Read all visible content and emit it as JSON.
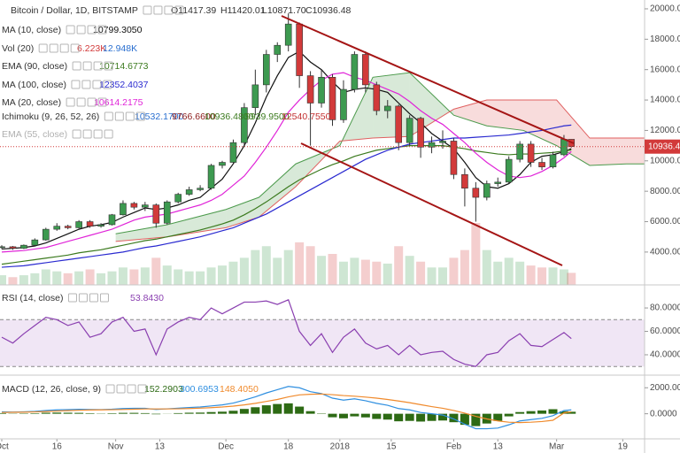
{
  "chart_data": [
    {
      "type": "candlestick",
      "title": "Bitcoin / Dollar, 1D, BITSTAMP",
      "legend_ohlc": [
        "O11417.39",
        "H11420.01",
        "L10871.70",
        "C10936.48"
      ],
      "x": [
        "10-01",
        "10-04",
        "10-07",
        "10-10",
        "10-13",
        "10-16",
        "10-19",
        "10-22",
        "10-25",
        "10-28",
        "10-31",
        "11-03",
        "11-06",
        "11-09",
        "11-12",
        "11-15",
        "11-18",
        "11-21",
        "11-24",
        "11-27",
        "11-30",
        "12-03",
        "12-06",
        "12-09",
        "12-12",
        "12-15",
        "12-18",
        "12-21",
        "12-24",
        "12-27",
        "12-30",
        "01-02",
        "01-05",
        "01-08",
        "01-11",
        "01-14",
        "01-17",
        "01-20",
        "01-23",
        "01-26",
        "01-29",
        "02-01",
        "02-04",
        "02-07",
        "02-10",
        "02-13",
        "02-16",
        "02-19",
        "02-22",
        "02-25",
        "02-28",
        "03-03",
        "03-05"
      ],
      "open": [
        4300,
        4350,
        4250,
        4450,
        4800,
        5500,
        5700,
        5600,
        6000,
        5700,
        5800,
        6450,
        7200,
        6950,
        7100,
        5900,
        7300,
        7800,
        8100,
        8200,
        9700,
        9900,
        11200,
        13500,
        15000,
        17000,
        17600,
        19000,
        15600,
        13800,
        15500,
        12700,
        14700,
        17000,
        15000,
        13300,
        13600,
        11200,
        12800,
        10900,
        11200,
        11300,
        9100,
        8200,
        7600,
        8500,
        8600,
        10100,
        11100,
        9900,
        9600,
        10400,
        11417.39
      ],
      "high": [
        4450,
        4400,
        4500,
        4900,
        5600,
        5900,
        5800,
        6100,
        6100,
        5900,
        6500,
        7400,
        7300,
        7300,
        7200,
        7400,
        7900,
        8300,
        8400,
        9800,
        10000,
        11400,
        13800,
        16000,
        17300,
        17800,
        19700,
        19100,
        15900,
        16000,
        15700,
        15300,
        17200,
        17200,
        15200,
        14000,
        13700,
        13000,
        12900,
        11600,
        12000,
        11500,
        9500,
        8600,
        8700,
        8900,
        10300,
        11300,
        11300,
        10200,
        10600,
        11700,
        11420.01
      ],
      "low": [
        4200,
        4150,
        4200,
        4400,
        4750,
        5400,
        5500,
        5550,
        5600,
        5600,
        5750,
        6400,
        6800,
        6700,
        5600,
        5800,
        7200,
        7700,
        8000,
        8100,
        9500,
        9800,
        11000,
        13000,
        14500,
        16500,
        17200,
        14800,
        11000,
        13500,
        12300,
        12500,
        14500,
        14500,
        13000,
        12800,
        10700,
        11000,
        10200,
        10500,
        10800,
        8800,
        7000,
        6000,
        7400,
        8300,
        8500,
        9900,
        9600,
        9400,
        9500,
        10300,
        10871.7
      ],
      "close": [
        4350,
        4250,
        4450,
        4800,
        5500,
        5700,
        5600,
        6000,
        5700,
        5800,
        6450,
        7200,
        6950,
        7100,
        5900,
        7300,
        7800,
        8100,
        8200,
        9700,
        9900,
        11200,
        13500,
        15000,
        17000,
        17600,
        19000,
        15600,
        13800,
        15500,
        12700,
        14700,
        17000,
        15000,
        13300,
        13600,
        11200,
        12800,
        10900,
        11200,
        11300,
        9100,
        8200,
        7600,
        8500,
        8600,
        10100,
        11100,
        9900,
        9600,
        10400,
        11417.39,
        10936.48
      ],
      "up_color": "#3d9a50",
      "down_color": "#d23a3a",
      "ylim": [
        1840,
        20580
      ],
      "yticks": [
        {
          "value": 4000,
          "label": "4000.00"
        },
        {
          "value": 6000,
          "label": "6000.00"
        },
        {
          "value": 8000,
          "label": "8000.00"
        },
        {
          "value": 10000,
          "label": "10000.00"
        },
        {
          "value": 12000,
          "label": "12000.00"
        },
        {
          "value": 14000,
          "label": "14000.00"
        },
        {
          "value": 16000,
          "label": "16000.00"
        },
        {
          "value": 18000,
          "label": "18000.00"
        },
        {
          "value": 20000,
          "label": "20000.00"
        }
      ],
      "series": [
        {
          "name": "MA (10, close)",
          "color": "#111111",
          "legend_label": "10799.3050",
          "values": [
            4200,
            4250,
            4300,
            4400,
            4600,
            4900,
            5200,
            5500,
            5700,
            5800,
            5950,
            6300,
            6600,
            6900,
            6800,
            6900,
            7100,
            7400,
            7600,
            8200,
            8800,
            9800,
            11000,
            12500,
            14200,
            15600,
            16800,
            17200,
            16500,
            16000,
            15200,
            14500,
            14700,
            14800,
            14700,
            14500,
            13800,
            13100,
            12500,
            11800,
            11300,
            10800,
            9900,
            8900,
            8300,
            8200,
            8500,
            9100,
            9900,
            10300,
            10400,
            10600,
            10799.305
          ]
        },
        {
          "name": "EMA (90, close)",
          "color": "#3b7a1e",
          "legend_label": "10714.6773",
          "values": [
            3200,
            3300,
            3400,
            3500,
            3600,
            3700,
            3800,
            3950,
            4050,
            4150,
            4300,
            4450,
            4600,
            4750,
            4850,
            5000,
            5150,
            5300,
            5450,
            5650,
            5850,
            6100,
            6450,
            6850,
            7300,
            7800,
            8300,
            8750,
            9100,
            9450,
            9750,
            10000,
            10300,
            10500,
            10700,
            10800,
            10900,
            11000,
            11000,
            11000,
            11000,
            10900,
            10800,
            10650,
            10550,
            10450,
            10400,
            10450,
            10450,
            10500,
            10550,
            10650,
            10714.6773
          ]
        },
        {
          "name": "MA (100, close)",
          "color": "#2a2ad0",
          "legend_label": "12352.4037",
          "values": [
            3000,
            3050,
            3100,
            3200,
            3300,
            3400,
            3500,
            3600,
            3700,
            3800,
            3900,
            4000,
            4150,
            4300,
            4400,
            4550,
            4700,
            4850,
            5000,
            5200,
            5400,
            5600,
            5900,
            6200,
            6500,
            6900,
            7300,
            7700,
            8100,
            8500,
            8900,
            9300,
            9700,
            10100,
            10400,
            10700,
            10900,
            11100,
            11200,
            11300,
            11400,
            11500,
            11500,
            11550,
            11600,
            11650,
            11700,
            11800,
            11900,
            12000,
            12150,
            12300,
            12352.4037
          ]
        },
        {
          "name": "MA (20, close)",
          "color": "#e024d8",
          "legend_label": "10614.2175",
          "values": [
            4000,
            4050,
            4100,
            4200,
            4300,
            4500,
            4700,
            4900,
            5100,
            5300,
            5500,
            5800,
            6100,
            6300,
            6400,
            6500,
            6700,
            6900,
            7100,
            7400,
            7800,
            8400,
            9000,
            9900,
            10900,
            12000,
            13200,
            14000,
            14700,
            15300,
            15700,
            15800,
            15500,
            15300,
            15000,
            14700,
            14400,
            13900,
            13300,
            12800,
            12400,
            11800,
            11200,
            10500,
            9900,
            9400,
            9000,
            8900,
            9000,
            9300,
            9700,
            10200,
            10614.2175
          ]
        }
      ],
      "volume": {
        "name": "Vol (20)",
        "legend_labels": [
          "6.223K",
          "12.948K"
        ],
        "values": [
          5,
          4,
          5,
          6,
          8,
          7,
          6,
          7,
          8,
          6,
          7,
          9,
          8,
          9,
          14,
          10,
          8,
          7,
          7,
          9,
          10,
          12,
          14,
          18,
          20,
          14,
          18,
          22,
          20,
          15,
          16,
          12,
          14,
          13,
          12,
          11,
          20,
          15,
          12,
          9,
          9,
          14,
          18,
          32,
          18,
          12,
          14,
          12,
          10,
          9,
          9,
          8,
          6.223
        ]
      },
      "ichimoku": {
        "name": "Ichimoku (9, 26, 52, 26)",
        "legend_labels": [
          "10532.1700",
          "9766.6600",
          "10936.4800",
          "9939.9500",
          "12540.7550"
        ],
        "cloud_x": [
          "11-01",
          "11-15",
          "12-01",
          "12-10",
          "12-20",
          "01-01",
          "01-10",
          "01-20",
          "02-01",
          "02-10",
          "02-20",
          "03-01",
          "03-10",
          "03-20",
          "03-31"
        ],
        "span_a": [
          5200,
          5800,
          6800,
          7600,
          9800,
          11000,
          15500,
          15800,
          13000,
          12300,
          12000,
          11000,
          9700,
          9800,
          9800
        ],
        "span_b": [
          4700,
          5000,
          5600,
          6300,
          8300,
          11300,
          11500,
          11600,
          13400,
          14000,
          14000,
          14000,
          11500,
          11500,
          11500
        ],
        "span_a_color": "#4c9a4c",
        "span_b_color": "#e06060"
      },
      "hidden_indicators": [
        "EMA (55, close)"
      ]
    },
    {
      "type": "line",
      "title": "RSI (14, close)",
      "legend_label": "53.8430",
      "color": "#8a3fb0",
      "values": [
        55,
        50,
        58,
        65,
        72,
        70,
        65,
        68,
        55,
        58,
        68,
        72,
        60,
        62,
        40,
        62,
        68,
        72,
        70,
        80,
        75,
        80,
        85,
        85,
        86,
        83,
        87,
        60,
        48,
        58,
        42,
        55,
        62,
        50,
        45,
        48,
        40,
        48,
        40,
        42,
        43,
        36,
        32,
        30,
        40,
        42,
        52,
        58,
        48,
        47,
        53,
        59,
        53.843
      ],
      "band": [
        30,
        70
      ],
      "ylim": [
        22.6,
        99.7
      ],
      "yticks": [
        {
          "value": 40,
          "label": "40.0000"
        },
        {
          "value": 60,
          "label": "60.0000"
        },
        {
          "value": 80,
          "label": "80.0000"
        }
      ]
    },
    {
      "type": "macd",
      "title": "MACD (12, 26, close, 9)",
      "legend_labels": [
        "152.2903",
        "300.6953",
        "148.4050"
      ],
      "histogram": [
        50,
        20,
        30,
        40,
        80,
        90,
        80,
        70,
        40,
        20,
        40,
        70,
        70,
        50,
        -40,
        10,
        50,
        80,
        90,
        130,
        160,
        230,
        370,
        500,
        650,
        750,
        800,
        550,
        200,
        30,
        -270,
        -350,
        -200,
        -280,
        -400,
        -450,
        -580,
        -550,
        -600,
        -550,
        -520,
        -650,
        -850,
        -950,
        -750,
        -550,
        -200,
        130,
        200,
        250,
        350,
        190,
        152.2903
      ],
      "macd": [
        150,
        130,
        150,
        180,
        250,
        300,
        320,
        340,
        330,
        320,
        350,
        400,
        420,
        420,
        330,
        380,
        430,
        480,
        520,
        600,
        680,
        820,
        1050,
        1300,
        1600,
        1850,
        2100,
        2000,
        1700,
        1550,
        1200,
        1050,
        1150,
        1000,
        800,
        650,
        400,
        300,
        100,
        0,
        -100,
        -400,
        -800,
        -1150,
        -1150,
        -1100,
        -850,
        -550,
        -450,
        -350,
        -150,
        250,
        300.6953
      ],
      "signal": [
        100,
        110,
        120,
        140,
        170,
        210,
        240,
        270,
        290,
        300,
        310,
        330,
        350,
        370,
        370,
        370,
        380,
        400,
        430,
        470,
        520,
        590,
        680,
        800,
        950,
        1100,
        1300,
        1450,
        1500,
        1520,
        1470,
        1400,
        1350,
        1280,
        1200,
        1100,
        980,
        850,
        700,
        550,
        420,
        250,
        50,
        -200,
        -400,
        -550,
        -650,
        -680,
        -650,
        -600,
        -500,
        60,
        148.405
      ],
      "histogram_color": "#2d6a14",
      "macd_color": "#2f8fe0",
      "signal_color": "#f08a2c",
      "ylim": [
        -1930,
        2970
      ],
      "yticks": [
        {
          "value": 0,
          "label": "0.0000"
        },
        {
          "value": 2000,
          "label": "2000.0000"
        }
      ],
      "xticks": [
        {
          "value": "10-01",
          "label": "Oct"
        },
        {
          "value": "10-16",
          "label": "16"
        },
        {
          "value": "11-01",
          "label": "Nov"
        },
        {
          "value": "11-13",
          "label": "13"
        },
        {
          "value": "12-01",
          "label": "Dec"
        },
        {
          "value": "12-18",
          "label": "18"
        },
        {
          "value": "01-01",
          "label": "2018"
        },
        {
          "value": "01-15",
          "label": "15"
        },
        {
          "value": "02-01",
          "label": "Feb"
        },
        {
          "value": "02-13",
          "label": "13"
        },
        {
          "value": "03-01",
          "label": "Mar"
        },
        {
          "value": "03-19",
          "label": "19"
        }
      ]
    }
  ]
}
